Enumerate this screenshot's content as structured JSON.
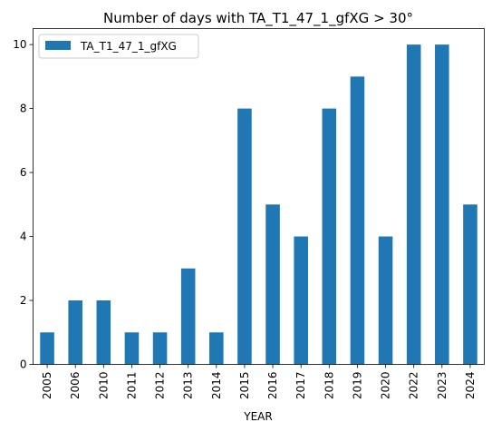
{
  "chart_data": {
    "type": "bar",
    "title": "Number of days with TA_T1_47_1_gfXG > 30°",
    "xlabel": "YEAR",
    "ylabel": "",
    "categories": [
      "2005",
      "2006",
      "2010",
      "2011",
      "2012",
      "2013",
      "2014",
      "2015",
      "2016",
      "2017",
      "2018",
      "2019",
      "2020",
      "2022",
      "2023",
      "2024"
    ],
    "series": [
      {
        "name": "TA_T1_47_1_gfXG",
        "values": [
          1,
          2,
          2,
          1,
          1,
          3,
          1,
          8,
          5,
          4,
          8,
          9,
          4,
          10,
          10,
          5
        ],
        "color": "#1f77b4"
      }
    ],
    "ylim": [
      0,
      10.5
    ],
    "yticks": [
      0,
      2,
      4,
      6,
      8,
      10
    ],
    "grid": false,
    "legend_position": "top-left"
  }
}
